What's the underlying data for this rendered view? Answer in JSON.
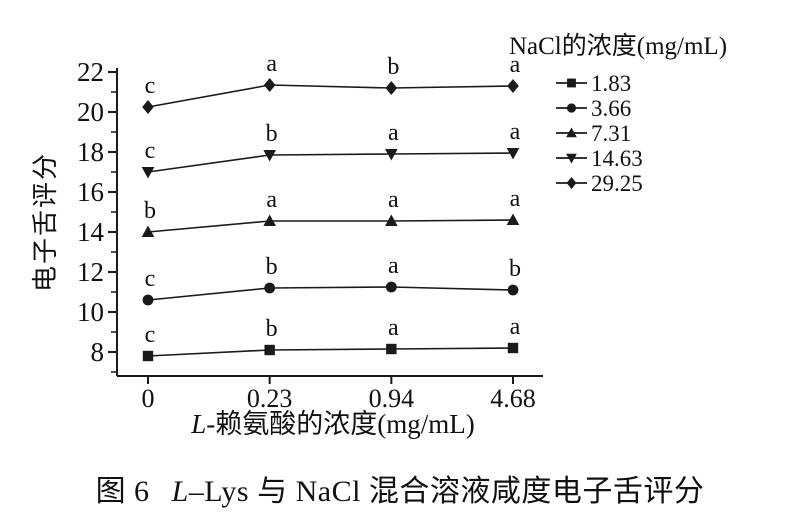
{
  "figure": {
    "caption_prefix": "图 6",
    "caption_italic": "L",
    "caption_rest": "–Lys 与 NaCl 混合溶液咸度电子舌评分"
  },
  "chart_data": {
    "type": "line",
    "title": "",
    "xlabel_italic": "L",
    "xlabel_rest": "-赖氨酸的浓度(mg/mL)",
    "ylabel": "电子舌评分",
    "categories": [
      "0",
      "0.23",
      "0.94",
      "4.68"
    ],
    "ylim": [
      7,
      22.4
    ],
    "yticks": [
      8,
      10,
      12,
      14,
      16,
      18,
      20,
      22
    ],
    "yticks_minor": [
      7,
      9,
      11,
      13,
      15,
      17,
      19,
      21
    ],
    "grid": false,
    "legend_title": "NaCl的浓度(mg/mL)",
    "legend_position": "top-right",
    "line_color": "#1a1a1a",
    "series": [
      {
        "name": "1.83",
        "marker": "square",
        "values": [
          7.8,
          8.1,
          8.15,
          8.2
        ],
        "point_labels": [
          "c",
          "b",
          "a",
          "a"
        ]
      },
      {
        "name": "3.66",
        "marker": "circle",
        "values": [
          10.6,
          11.2,
          11.25,
          11.1
        ],
        "point_labels": [
          "c",
          "b",
          "a",
          "b"
        ]
      },
      {
        "name": "7.31",
        "marker": "triangle-up",
        "values": [
          14.0,
          14.55,
          14.55,
          14.6
        ],
        "point_labels": [
          "b",
          "a",
          "a",
          "a"
        ]
      },
      {
        "name": "14.63",
        "marker": "triangle-down",
        "values": [
          17.0,
          17.85,
          17.9,
          17.95
        ],
        "point_labels": [
          "c",
          "b",
          "a",
          "a"
        ]
      },
      {
        "name": "29.25",
        "marker": "diamond",
        "values": [
          20.25,
          21.35,
          21.2,
          21.3
        ],
        "point_labels": [
          "c",
          "a",
          "b",
          "a"
        ]
      }
    ]
  }
}
